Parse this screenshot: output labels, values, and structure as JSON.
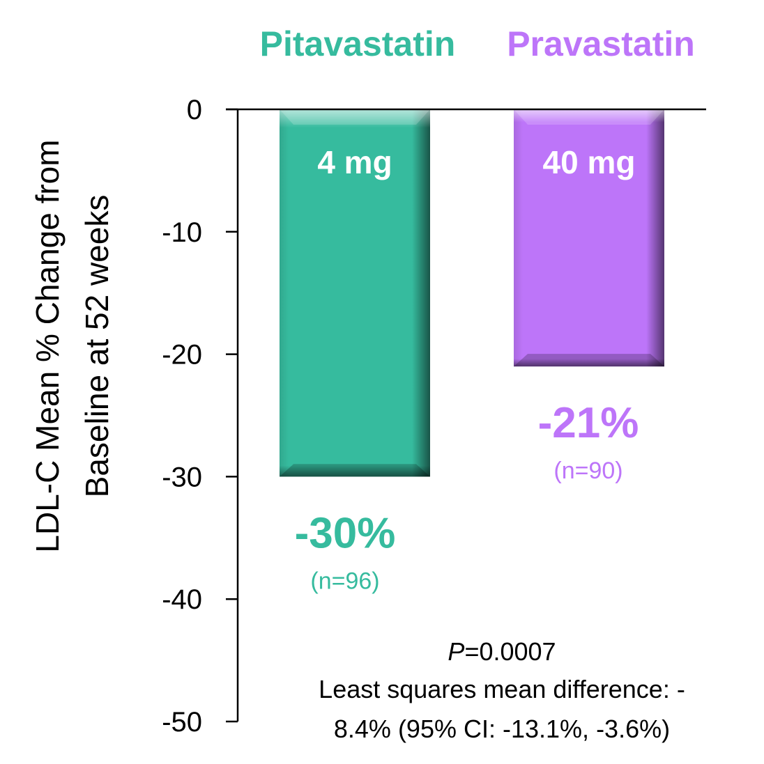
{
  "chart_data": {
    "type": "bar",
    "categories": [
      "Pitavastatin",
      "Pravastatin"
    ],
    "values": [
      -30,
      -21
    ],
    "colors": [
      "#36bb9e",
      "#bd75f9"
    ],
    "doses": [
      "4 mg",
      "40 mg"
    ],
    "value_labels": [
      "-30%",
      "-21%"
    ],
    "n_labels": [
      "(n=96)",
      "(n=90)"
    ],
    "ylabel_lines": [
      "LDL-C Mean % Change from",
      "Baseline at 52 weeks"
    ],
    "xlabel": "",
    "ylim": [
      -50,
      0
    ],
    "yticks": [
      0,
      -10,
      -20,
      -30,
      -40,
      -50
    ],
    "ytick_labels": [
      "0",
      "-10",
      "-20",
      "-30",
      "-40",
      "-50"
    ],
    "grid": false,
    "annotation": {
      "p_symbol": "P",
      "p_value": "=0.0007",
      "line1": "Least squares mean difference: -",
      "line2": "8.4% (95% CI: -13.1%, -3.6%)"
    }
  }
}
